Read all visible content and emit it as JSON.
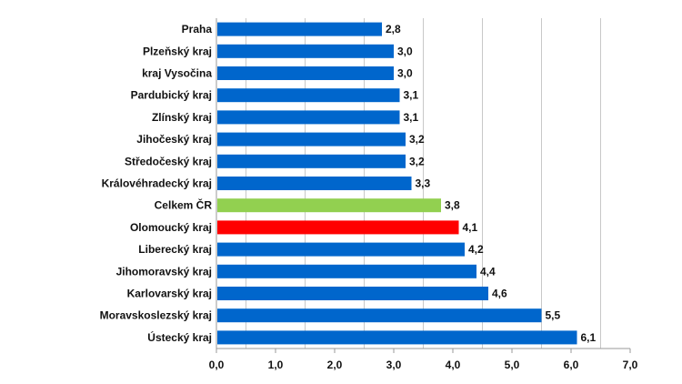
{
  "chart_data": {
    "type": "bar",
    "orientation": "horizontal",
    "categories": [
      "Praha",
      "Plzeňský kraj",
      "kraj Vysočina",
      "Pardubický kraj",
      "Zlínský kraj",
      "Jihočeský kraj",
      "Středočeský kraj",
      "Královéhradecký kraj",
      "Celkem ČR",
      "Olomoucký kraj",
      "Liberecký kraj",
      "Jihomoravský kraj",
      "Karlovarský kraj",
      "Moravskoslezský kraj",
      "Ústecký kraj"
    ],
    "values": [
      2.8,
      3.0,
      3.0,
      3.1,
      3.1,
      3.2,
      3.2,
      3.3,
      3.8,
      4.1,
      4.2,
      4.4,
      4.6,
      5.5,
      6.1
    ],
    "data_labels": [
      "2,8",
      "3,0",
      "3,0",
      "3,1",
      "3,1",
      "3,2",
      "3,2",
      "3,3",
      "3,8",
      "4,1",
      "4,2",
      "4,4",
      "4,6",
      "5,5",
      "6,1"
    ],
    "xlim": [
      0,
      7
    ],
    "x_ticks": [
      "0,0",
      "1,0",
      "2,0",
      "3,0",
      "4,0",
      "5,0",
      "6,0",
      "7,0"
    ],
    "grid": true,
    "colors": {
      "default": "#0066cc",
      "Celkem ČR": "#92d050",
      "Olomoucký kraj": "#ff0000"
    },
    "title": "",
    "xlabel": "",
    "ylabel": ""
  }
}
